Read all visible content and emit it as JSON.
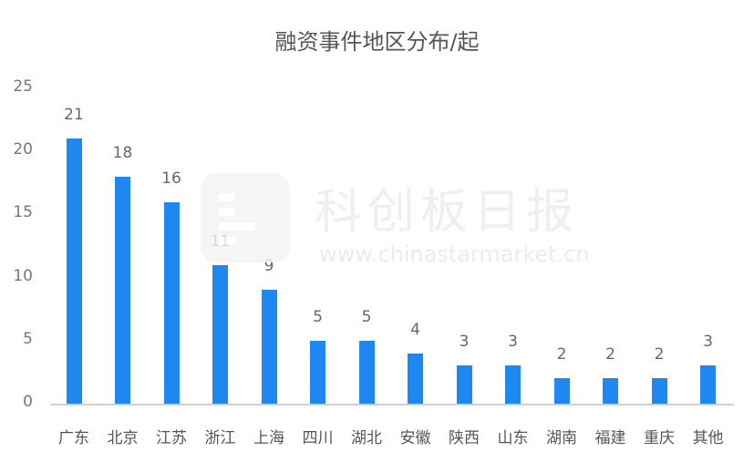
{
  "chart_data": {
    "type": "bar",
    "title": "融资事件地区分布/起",
    "xlabel": "",
    "ylabel": "",
    "ylim": [
      0,
      25
    ],
    "yticks": [
      0,
      5,
      10,
      15,
      20,
      25
    ],
    "grid": false,
    "legend": null,
    "data_labels": true,
    "bar_color": "#1e88f0",
    "categories": [
      "广东",
      "北京",
      "江苏",
      "浙江",
      "上海",
      "四川",
      "湖北",
      "安徽",
      "陕西",
      "山东",
      "湖南",
      "福建",
      "重庆",
      "其他"
    ],
    "values": [
      21,
      18,
      16,
      11,
      9,
      5,
      5,
      4,
      3,
      3,
      2,
      2,
      2,
      3
    ]
  },
  "watermark": {
    "name": "科创板日报",
    "url": "www.chinastarmarket.cn"
  }
}
